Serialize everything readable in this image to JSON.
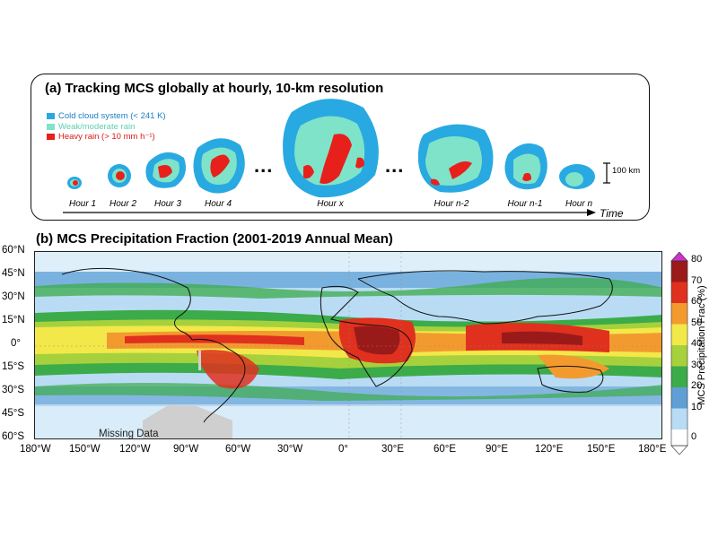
{
  "panel_a": {
    "title": "(a) Tracking MCS globally at hourly, 10-km resolution",
    "legend": [
      {
        "label": "Cold cloud system (< 241 K)",
        "color": "#29a9e1"
      },
      {
        "label": "Weak/moderate rain",
        "color": "#7fe3c9"
      },
      {
        "label": "Heavy rain (> 10 mm h⁻¹)",
        "color": "#e8201c"
      }
    ],
    "hours": [
      "Hour 1",
      "Hour 2",
      "Hour 3",
      "Hour 4",
      "Hour x",
      "Hour n-2",
      "Hour n-1",
      "Hour n"
    ],
    "ellipsis": "...",
    "scale_label": "100 km",
    "time_label": "Time"
  },
  "panel_b": {
    "title": "(b) MCS Precipitation Fraction (2001-2019 Annual Mean)",
    "lat_ticks": [
      "60°N",
      "45°N",
      "30°N",
      "15°N",
      "0°",
      "15°S",
      "30°S",
      "45°S",
      "60°S"
    ],
    "lon_ticks": [
      "180°W",
      "150°W",
      "120°W",
      "90°W",
      "60°W",
      "30°W",
      "0°",
      "30°E",
      "60°E",
      "90°E",
      "120°E",
      "150°E",
      "180°E"
    ],
    "missing_label": "Missing Data",
    "colorbar": {
      "label": "MCS Precipitation Frac (%)",
      "ticks": [
        "0",
        "10",
        "20",
        "30",
        "40",
        "50",
        "60",
        "70",
        "80"
      ],
      "colors": [
        "#ffffff",
        "#b9dcf4",
        "#5f9fd6",
        "#3cab4a",
        "#a6d13c",
        "#f2e84a",
        "#f39a2f",
        "#e0301e",
        "#9a1a1a"
      ],
      "extend_color": "#cc33cc"
    }
  }
}
